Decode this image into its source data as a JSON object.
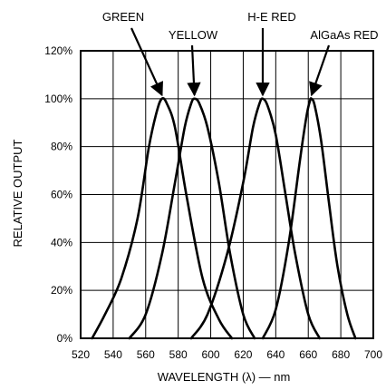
{
  "chart_data": {
    "type": "line",
    "xlabel": "WAVELENGTH (λ) — nm",
    "ylabel": "RELATIVE OUTPUT",
    "xlim": [
      520,
      700
    ],
    "ylim": [
      0,
      120
    ],
    "x_ticks": [
      520,
      540,
      560,
      580,
      600,
      620,
      640,
      660,
      680,
      700
    ],
    "y_ticks": [
      0,
      20,
      40,
      60,
      80,
      100,
      120
    ],
    "x_tick_labels": [
      "520",
      "540",
      "560",
      "580",
      "600",
      "620",
      "640",
      "660",
      "680",
      "700"
    ],
    "y_tick_labels": [
      "0%",
      "20%",
      "40%",
      "60%",
      "80%",
      "100%",
      "120%"
    ],
    "grid": true,
    "series": [
      {
        "name": "GREEN",
        "peak": 570,
        "x": [
          527,
          535,
          545,
          555,
          562,
          567,
          570,
          573,
          578,
          585,
          595,
          605,
          613
        ],
        "y": [
          0,
          10,
          25,
          50,
          80,
          95,
          100,
          98,
          88,
          60,
          25,
          8,
          0
        ]
      },
      {
        "name": "YELLOW",
        "peak": 590,
        "x": [
          550,
          560,
          570,
          578,
          584,
          588,
          590,
          593,
          598,
          605,
          612,
          620,
          627
        ],
        "y": [
          0,
          10,
          35,
          65,
          88,
          98,
          100,
          98,
          88,
          65,
          35,
          10,
          0
        ]
      },
      {
        "name": "H-E RED",
        "peak": 632,
        "x": [
          588,
          598,
          610,
          620,
          626,
          630,
          632,
          635,
          640,
          646,
          652,
          660,
          667
        ],
        "y": [
          0,
          10,
          35,
          65,
          88,
          98,
          100,
          97,
          85,
          60,
          35,
          10,
          0
        ]
      },
      {
        "name": "AlGaAs RED",
        "peak": 662,
        "x": [
          632,
          640,
          648,
          655,
          659,
          661,
          662,
          664,
          668,
          673,
          678,
          684,
          689
        ],
        "y": [
          0,
          12,
          40,
          75,
          93,
          99,
          100,
          97,
          82,
          55,
          30,
          10,
          0
        ]
      }
    ]
  }
}
